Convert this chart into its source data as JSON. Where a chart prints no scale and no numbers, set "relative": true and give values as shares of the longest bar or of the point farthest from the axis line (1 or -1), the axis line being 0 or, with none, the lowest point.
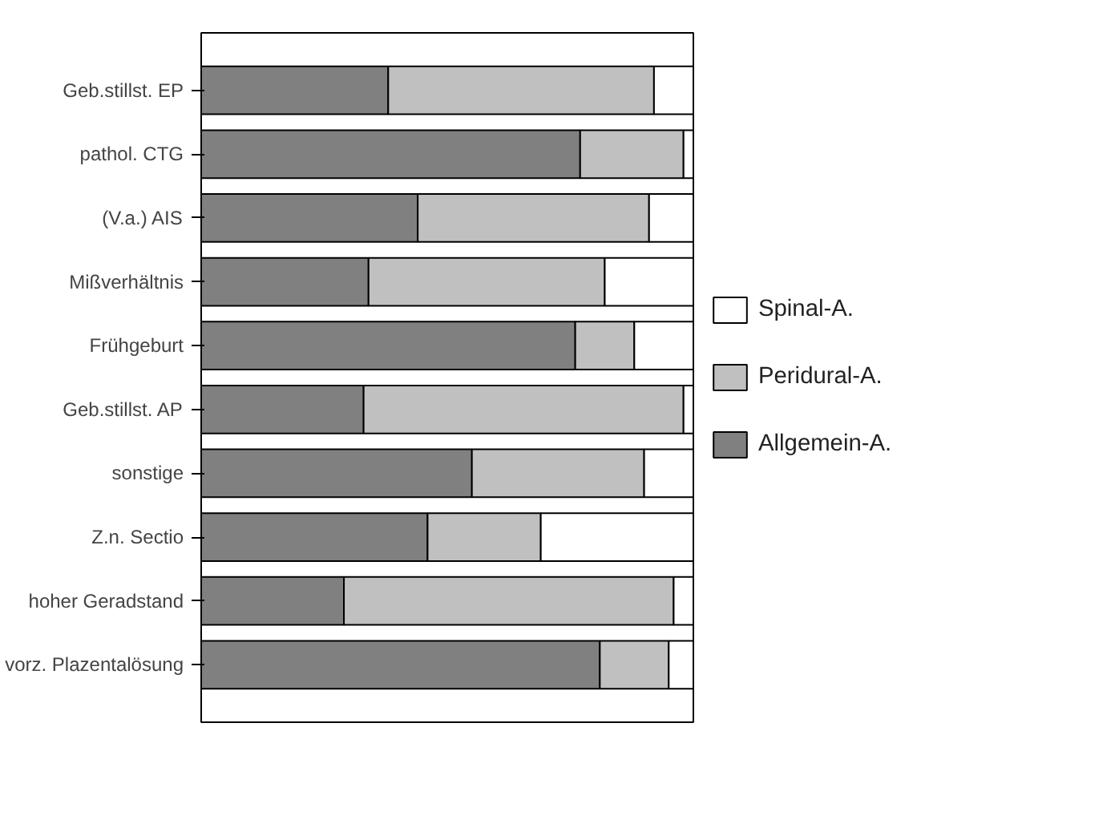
{
  "chart_data": {
    "type": "bar",
    "orientation": "horizontal",
    "stacked": true,
    "relative": true,
    "categories": [
      "Geb.stillst. EP",
      "pathol. CTG",
      "(V.a.) AIS",
      "Mißverhältnis",
      "Frühgeburt",
      "Geb.stillst. AP",
      "sonstige",
      "Z.n. Sectio",
      "hoher Geradstand",
      "vorz. Plazentalösung"
    ],
    "series": [
      {
        "name": "Allgemein-A.",
        "color": "#808080",
        "values": [
          0.38,
          0.77,
          0.44,
          0.34,
          0.76,
          0.33,
          0.55,
          0.46,
          0.29,
          0.81
        ]
      },
      {
        "name": "Peridural-A.",
        "color": "#c0c0c0",
        "values": [
          0.54,
          0.21,
          0.47,
          0.48,
          0.12,
          0.65,
          0.35,
          0.23,
          0.67,
          0.14
        ]
      },
      {
        "name": "Spinal-A.",
        "color": "#ffffff",
        "values": [
          0.08,
          0.02,
          0.09,
          0.18,
          0.12,
          0.02,
          0.1,
          0.31,
          0.04,
          0.05
        ]
      }
    ],
    "legend": "right",
    "grid": false,
    "tick_labels": "y"
  }
}
